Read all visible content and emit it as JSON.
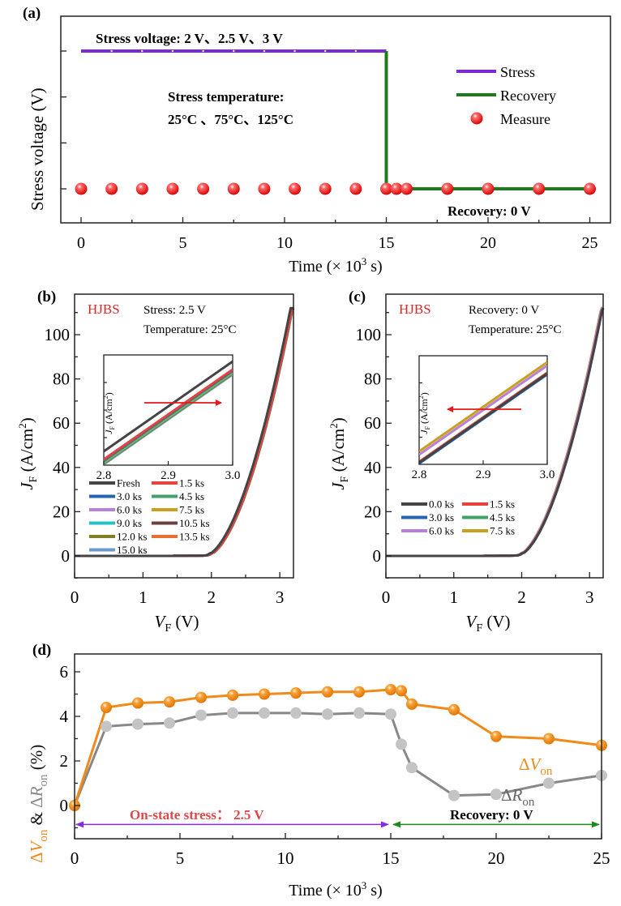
{
  "chart_data": [
    {
      "id": "a",
      "panel_label": "(a)",
      "type": "line",
      "title": "",
      "xlabel": "Time (× 10³ s)",
      "xlabel_base": "Time (× 10",
      "xlabel_exp": "3",
      "xlabel_tail": " s)",
      "ylabel": "Stress voltage (V)",
      "xlim": [
        -0.5,
        26.0
      ],
      "xticks": [
        0,
        5,
        10,
        15,
        20,
        25
      ],
      "xtick_labels": [
        "0",
        "5",
        "10",
        "15",
        "20",
        "25"
      ],
      "ylim": [
        0,
        4
      ],
      "yticks_unlabeled": [
        0.5,
        1.5,
        2.5,
        3.5
      ],
      "series": [
        {
          "name": "Stress",
          "color": "#7b2ad6",
          "x": [
            0,
            15
          ],
          "y": [
            3.5,
            3.5
          ]
        },
        {
          "name": "Recovery",
          "color": "#1f7a1f",
          "x": [
            15,
            15,
            25
          ],
          "y": [
            3.5,
            0.5,
            0.5
          ]
        },
        {
          "name": "Measure",
          "color": "#e51a1a",
          "marker": "sphere",
          "x": [
            0,
            1.5,
            3,
            4.5,
            6,
            7.5,
            9,
            10.5,
            12,
            13.5,
            15,
            15.5,
            16,
            18,
            20,
            22.5,
            25
          ],
          "y": [
            0.5,
            0.5,
            0.5,
            0.5,
            0.5,
            0.5,
            0.5,
            0.5,
            0.5,
            0.5,
            0.5,
            0.5,
            0.5,
            0.5,
            0.5,
            0.5,
            0.5
          ]
        }
      ],
      "stress_marker_dots_x": [
        1.5,
        3,
        4.5,
        6,
        7.5,
        9,
        10.5,
        12,
        13.5
      ],
      "legend": {
        "position": "top-right",
        "entries": [
          "Stress",
          "Recovery",
          "Measure"
        ]
      },
      "annotations": {
        "stress_voltage": "Stress voltage: 2 V、2.5 V、3 V",
        "stress_temp_title": "Stress temperature:",
        "stress_temp_values": "25°C 、75°C、125°C",
        "recovery": "Recovery: 0 V"
      }
    },
    {
      "id": "b",
      "panel_label": "(b)",
      "type": "line",
      "xlabel": "VF (V)",
      "xlabel_main": "V",
      "xlabel_sub": "F",
      "xlabel_unit": " (V)",
      "ylabel": "JF (A/cm²)",
      "ylabel_main": "J",
      "ylabel_sub": "F",
      "ylabel_unit": " (A/cm",
      "ylabel_exp": "2",
      "ylabel_close": ")",
      "xlim": [
        0,
        3.2
      ],
      "ylim": [
        -10,
        113
      ],
      "xticks": [
        0,
        1,
        2,
        3
      ],
      "xtick_labels": [
        "0",
        "1",
        "2",
        "3"
      ],
      "yticks": [
        0,
        20,
        40,
        60,
        80,
        100
      ],
      "ytick_labels": [
        "0",
        "20",
        "40",
        "60",
        "80",
        "100"
      ],
      "device_label": "HJBS",
      "device_color": "#d42a2a",
      "condition_1": "Stress: 2.5 V",
      "condition_2": "Temperature: 25°C",
      "curve_model": {
        "v_on": 1.9,
        "k": 121,
        "p": 1.55,
        "v_shift_per_ks": 0.004,
        "v_max": 3.2
      },
      "series": [
        {
          "name": "Fresh",
          "color": "#444444",
          "shift": 0.0
        },
        {
          "name": "1.5 ks",
          "color": "#e8423c",
          "shift": 1.0
        },
        {
          "name": "3.0 ks",
          "color": "#2464b4",
          "shift": 1.05
        },
        {
          "name": "4.5 ks",
          "color": "#3fa06a",
          "shift": 1.1
        },
        {
          "name": "6.0 ks",
          "color": "#b880d8",
          "shift": 1.0
        },
        {
          "name": "7.5 ks",
          "color": "#c8a020",
          "shift": 1.15
        },
        {
          "name": "9.0 ks",
          "color": "#28c0c8",
          "shift": 1.2
        },
        {
          "name": "10.5 ks",
          "color": "#6a4040",
          "shift": 1.2
        },
        {
          "name": "12.0 ks",
          "color": "#808020",
          "shift": 1.25
        },
        {
          "name": "13.5 ks",
          "color": "#e87030",
          "shift": 1.25
        },
        {
          "name": "15.0 ks",
          "color": "#6a9ad0",
          "shift": 1.3
        }
      ],
      "inset": {
        "xlim": [
          2.8,
          3.0
        ],
        "xticks": [
          2.8,
          2.9,
          3.0
        ],
        "xtick_labels": [
          "2.8",
          "2.9",
          "3.0"
        ],
        "ylabel_main": "J",
        "ylabel_sub": "F",
        "ylabel_unit": " (A/cm",
        "ylabel_exp": "2",
        "ylabel_close": ")",
        "arrow_direction": "right",
        "arrow_color": "#e51a1a"
      },
      "legend": {
        "position": "lower-left",
        "columns": 2
      }
    },
    {
      "id": "c",
      "panel_label": "(c)",
      "type": "line",
      "xlabel": "VF (V)",
      "xlabel_main": "V",
      "xlabel_sub": "F",
      "xlabel_unit": " (V)",
      "ylabel": "JF (A/cm²)",
      "ylabel_main": "J",
      "ylabel_sub": "F",
      "ylabel_unit": " (A/cm",
      "ylabel_exp": "2",
      "ylabel_close": ")",
      "xlim": [
        0,
        3.2
      ],
      "ylim": [
        -10,
        113
      ],
      "xticks": [
        0,
        1,
        2,
        3
      ],
      "xtick_labels": [
        "0",
        "1",
        "2",
        "3"
      ],
      "yticks": [
        0,
        20,
        40,
        60,
        80,
        100
      ],
      "ytick_labels": [
        "0",
        "20",
        "40",
        "60",
        "80",
        "100"
      ],
      "device_label": "HJBS",
      "device_color": "#d42a2a",
      "condition_1": "Recovery: 0 V",
      "condition_2": "Temperature: 25°C",
      "series": [
        {
          "name": "0.0 ks",
          "color": "#444444",
          "shift": 1.3
        },
        {
          "name": "1.5 ks",
          "color": "#e8423c",
          "shift": 1.2
        },
        {
          "name": "3.0 ks",
          "color": "#2464b4",
          "shift": 1.35
        },
        {
          "name": "4.5 ks",
          "color": "#3fa06a",
          "shift": 1.25
        },
        {
          "name": "6.0 ks",
          "color": "#b880d8",
          "shift": 0.7
        },
        {
          "name": "7.5 ks",
          "color": "#c8a020",
          "shift": 0.5
        }
      ],
      "inset": {
        "xlim": [
          2.8,
          3.0
        ],
        "xticks": [
          2.8,
          2.9,
          3.0
        ],
        "xtick_labels": [
          "2.8",
          "2.9",
          "3.0"
        ],
        "ylabel_main": "J",
        "ylabel_sub": "F",
        "ylabel_unit": " (A/cm",
        "ylabel_exp": "2",
        "ylabel_close": ")",
        "arrow_direction": "left",
        "arrow_color": "#e51a1a"
      },
      "legend": {
        "position": "lower-left",
        "columns": 2
      }
    },
    {
      "id": "d",
      "panel_label": "(d)",
      "type": "line",
      "xlabel": "Time (× 10³ s)",
      "xlabel_base": "Time (× 10",
      "xlabel_exp": "3",
      "xlabel_tail": " s)",
      "ylabel": "ΔVon & ΔRon (%)",
      "xlim": [
        0,
        25
      ],
      "ylim": [
        -1.5,
        7
      ],
      "xticks": [
        0,
        5,
        10,
        15,
        20,
        25
      ],
      "xtick_labels": [
        "0",
        "5",
        "10",
        "15",
        "20",
        "25"
      ],
      "yticks": [
        0,
        2,
        4,
        6
      ],
      "ytick_labels": [
        "0",
        "2",
        "4",
        "6"
      ],
      "x": [
        0,
        1.5,
        3,
        4.5,
        6,
        7.5,
        9,
        10.5,
        12,
        13.5,
        15,
        15.5,
        16,
        18,
        20,
        22.5,
        25
      ],
      "series": [
        {
          "name": "ΔVon",
          "color": "#f08a1a",
          "values": [
            0.0,
            4.4,
            4.6,
            4.65,
            4.85,
            4.95,
            5.0,
            5.05,
            5.1,
            5.1,
            5.2,
            5.15,
            4.55,
            4.3,
            3.1,
            3.0,
            2.7
          ]
        },
        {
          "name": "ΔRon",
          "color": "#888888",
          "marker_color": "#c4c4c4",
          "values": [
            0.0,
            3.55,
            3.65,
            3.7,
            4.05,
            4.15,
            4.15,
            4.15,
            4.1,
            4.15,
            4.1,
            2.75,
            1.7,
            0.45,
            0.5,
            1.0,
            1.35
          ]
        }
      ],
      "series_labels": {
        "von_delta": "Δ",
        "von_main": "V",
        "von_sub": "on",
        "ron_delta": "Δ",
        "ron_main": "R",
        "ron_sub": "on"
      },
      "ylabel_parts": {
        "d1": "Δ",
        "v": "V",
        "on1": "on",
        "amp": " & ",
        "d2": "Δ",
        "r": "R",
        "on2": "on",
        "pct": " (%)"
      },
      "annotations": {
        "stress": "On-state stress： 2.5 V",
        "stress_color": "#e04848",
        "stress_arrow_color": "#8a2be2",
        "stress_range": [
          0,
          15
        ],
        "recovery": "Recovery: 0 V",
        "recovery_arrow_color": "#1f8a1f",
        "recovery_range": [
          15,
          25
        ],
        "arrow_level": -0.85
      }
    }
  ]
}
